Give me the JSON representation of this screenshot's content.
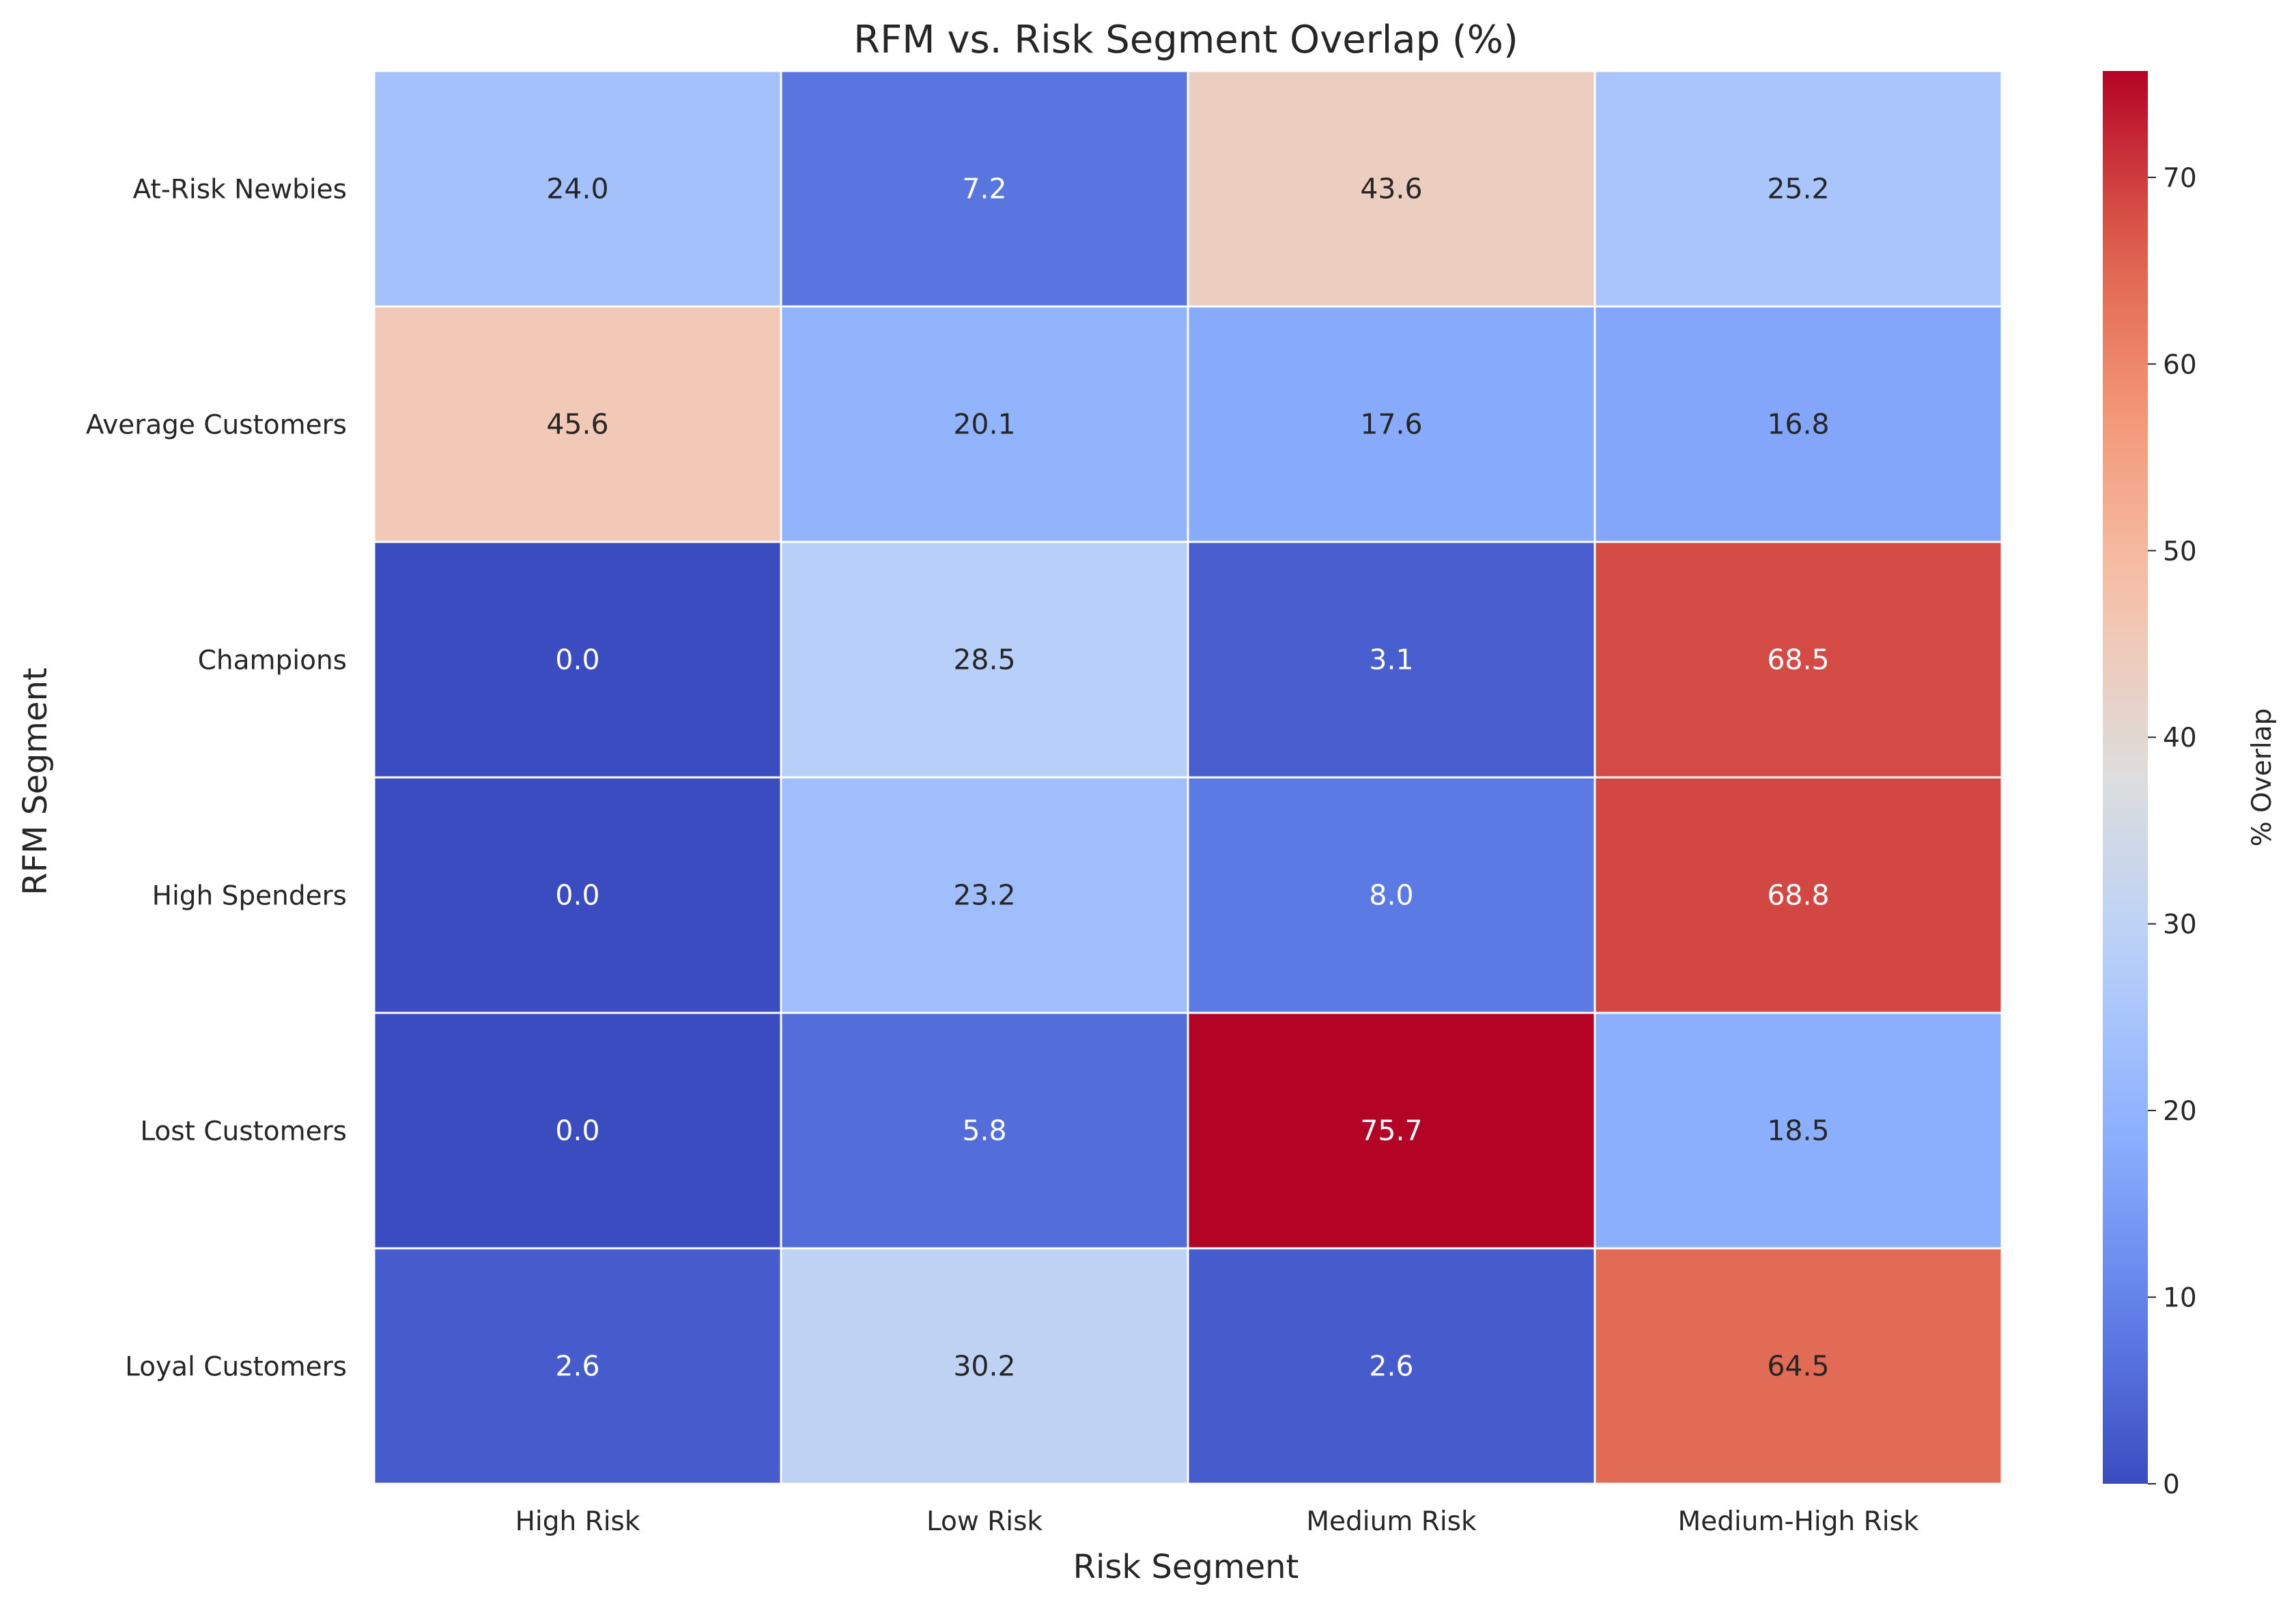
{
  "chart_data": {
    "type": "heatmap",
    "title": "RFM vs. Risk Segment Overlap (%)",
    "xlabel": "Risk Segment",
    "ylabel": "RFM Segment",
    "x_categories": [
      "High Risk",
      "Low Risk",
      "Medium Risk",
      "Medium-High Risk"
    ],
    "y_categories": [
      "At-Risk Newbies",
      "Average Customers",
      "Champions",
      "High Spenders",
      "Lost Customers",
      "Loyal Customers"
    ],
    "values": [
      [
        24.0,
        7.2,
        43.6,
        25.2
      ],
      [
        45.6,
        20.1,
        17.6,
        16.8
      ],
      [
        0.0,
        28.5,
        3.1,
        68.5
      ],
      [
        0.0,
        23.2,
        8.0,
        68.8
      ],
      [
        0.0,
        5.8,
        75.7,
        18.5
      ],
      [
        2.6,
        30.2,
        2.6,
        64.5
      ]
    ],
    "colorbar": {
      "label": "% Overlap",
      "range": [
        0,
        75.7
      ],
      "ticks": [
        0,
        10,
        20,
        30,
        40,
        50,
        60,
        70
      ]
    },
    "colormap": "coolwarm",
    "annotation_format": "0.1f"
  }
}
